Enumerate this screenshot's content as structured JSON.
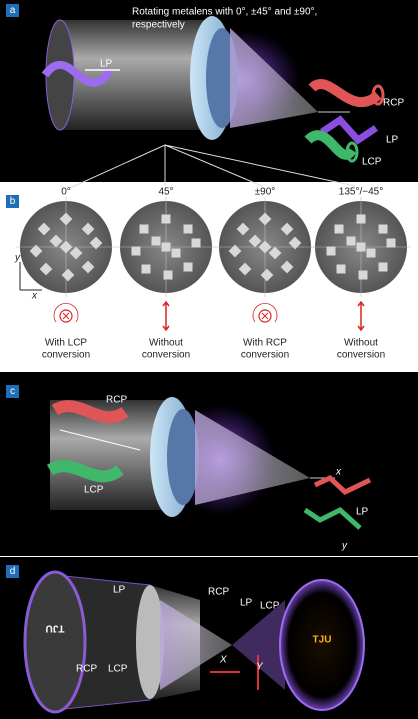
{
  "panel_a": {
    "label": "a",
    "caption": [
      "Rotating metalens with 0°, ±45° and ±90°,",
      "respectively"
    ],
    "input_lp": "LP",
    "rcp": "RCP",
    "lp": "LP",
    "lcp": "LCP"
  },
  "panel_b": {
    "label": "b",
    "angles": [
      "0°",
      "45°",
      "±90°",
      "135°/−45°"
    ],
    "axis_y": "y",
    "axis_x": "x",
    "captions": [
      [
        "With LCP",
        "conversion"
      ],
      [
        "Without",
        "conversion"
      ],
      [
        "With RCP",
        "conversion"
      ],
      [
        "Without",
        "conversion"
      ]
    ]
  },
  "panel_c": {
    "label": "c",
    "rcp": "RCP",
    "lcp": "LCP",
    "x": "x",
    "lp": "LP",
    "y": "y"
  },
  "panel_d": {
    "label": "d",
    "lp": "LP",
    "rcp": "RCP",
    "lcp": "LCP",
    "focus_rcp": "RCP",
    "focus_lp": "LP",
    "focus_lcp": "LCP",
    "x": "X",
    "y": "Y",
    "image": "TJU"
  }
}
